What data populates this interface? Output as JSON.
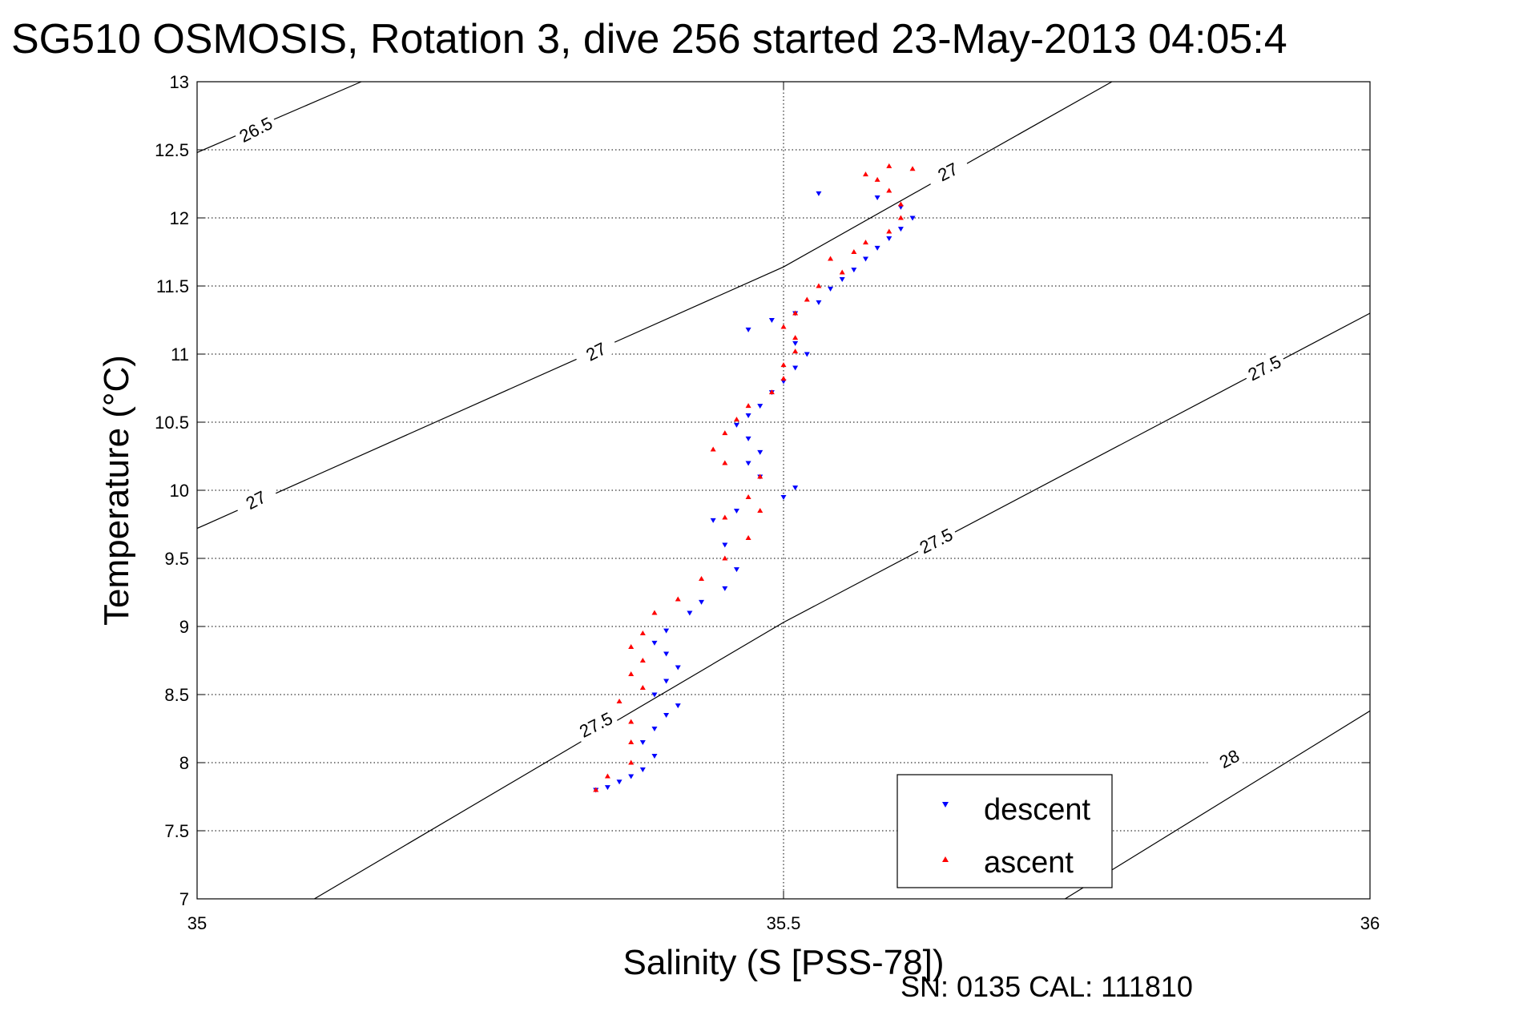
{
  "chart_data": {
    "type": "scatter",
    "title": "SG510 OSMOSIS, Rotation 3, dive 256 started 23-May-2013 04:05:4",
    "xlabel": "Salinity (S [PSS-78])",
    "ylabel": "Temperature (°C)",
    "xlim": [
      35,
      36
    ],
    "ylim": [
      7,
      13
    ],
    "xticks": [
      "35",
      "35.5",
      "36"
    ],
    "yticks": [
      "7",
      "7.5",
      "8",
      "8.5",
      "9",
      "9.5",
      "10",
      "10.5",
      "11",
      "11.5",
      "12",
      "12.5",
      "13"
    ],
    "grid": true,
    "legend_position": "bottom-right",
    "footer": "SN: 0135  CAL: 111810",
    "contours": [
      {
        "label": "26.5",
        "points": [
          [
            35.0,
            12.48
          ],
          [
            35.14,
            13.0
          ]
        ],
        "label_at": [
          35.05,
          12.65
        ]
      },
      {
        "label": "27",
        "points": [
          [
            35.0,
            9.72
          ],
          [
            35.5,
            11.64
          ],
          [
            35.78,
            13.0
          ]
        ],
        "label_at_list": [
          [
            35.05,
            9.93
          ],
          [
            35.34,
            11.02
          ],
          [
            35.64,
            12.34
          ]
        ]
      },
      {
        "label": "27.5",
        "points": [
          [
            35.1,
            7.0
          ],
          [
            35.5,
            9.03
          ],
          [
            36.0,
            11.3
          ]
        ],
        "label_at_list": [
          [
            35.34,
            8.28
          ],
          [
            35.63,
            9.63
          ],
          [
            35.91,
            10.9
          ]
        ]
      },
      {
        "label": "28",
        "points": [
          [
            35.74,
            7.0
          ],
          [
            36.0,
            8.38
          ]
        ],
        "label_at": [
          35.88,
          8.03
        ]
      }
    ],
    "series": [
      {
        "name": "descent",
        "color": "#0000ff",
        "marker": "triangle-down",
        "points": [
          [
            35.34,
            7.8
          ],
          [
            35.35,
            7.82
          ],
          [
            35.36,
            7.86
          ],
          [
            35.37,
            7.9
          ],
          [
            35.38,
            7.95
          ],
          [
            35.39,
            8.05
          ],
          [
            35.38,
            8.15
          ],
          [
            35.39,
            8.25
          ],
          [
            35.4,
            8.35
          ],
          [
            35.41,
            8.42
          ],
          [
            35.39,
            8.5
          ],
          [
            35.4,
            8.6
          ],
          [
            35.41,
            8.7
          ],
          [
            35.4,
            8.8
          ],
          [
            35.39,
            8.88
          ],
          [
            35.4,
            8.97
          ],
          [
            35.42,
            9.1
          ],
          [
            35.43,
            9.18
          ],
          [
            35.45,
            9.28
          ],
          [
            35.46,
            9.42
          ],
          [
            35.45,
            9.6
          ],
          [
            35.44,
            9.78
          ],
          [
            35.46,
            9.85
          ],
          [
            35.5,
            9.95
          ],
          [
            35.51,
            10.02
          ],
          [
            35.48,
            10.1
          ],
          [
            35.47,
            10.2
          ],
          [
            35.48,
            10.28
          ],
          [
            35.47,
            10.38
          ],
          [
            35.46,
            10.48
          ],
          [
            35.47,
            10.55
          ],
          [
            35.48,
            10.62
          ],
          [
            35.49,
            10.72
          ],
          [
            35.5,
            10.8
          ],
          [
            35.51,
            10.9
          ],
          [
            35.52,
            11.0
          ],
          [
            35.51,
            11.08
          ],
          [
            35.47,
            11.18
          ],
          [
            35.49,
            11.25
          ],
          [
            35.51,
            11.3
          ],
          [
            35.53,
            11.38
          ],
          [
            35.54,
            11.48
          ],
          [
            35.55,
            11.55
          ],
          [
            35.56,
            11.62
          ],
          [
            35.57,
            11.7
          ],
          [
            35.58,
            11.78
          ],
          [
            35.59,
            11.85
          ],
          [
            35.6,
            11.92
          ],
          [
            35.61,
            12.0
          ],
          [
            35.6,
            12.08
          ],
          [
            35.58,
            12.15
          ],
          [
            35.53,
            12.18
          ]
        ]
      },
      {
        "name": "ascent",
        "color": "#ff0000",
        "marker": "triangle-up",
        "points": [
          [
            35.34,
            7.8
          ],
          [
            35.35,
            7.9
          ],
          [
            35.37,
            8.0
          ],
          [
            35.37,
            8.15
          ],
          [
            35.37,
            8.3
          ],
          [
            35.36,
            8.45
          ],
          [
            35.38,
            8.55
          ],
          [
            35.37,
            8.65
          ],
          [
            35.38,
            8.75
          ],
          [
            35.37,
            8.85
          ],
          [
            35.38,
            8.95
          ],
          [
            35.39,
            9.1
          ],
          [
            35.41,
            9.2
          ],
          [
            35.43,
            9.35
          ],
          [
            35.45,
            9.5
          ],
          [
            35.47,
            9.65
          ],
          [
            35.45,
            9.8
          ],
          [
            35.48,
            9.85
          ],
          [
            35.47,
            9.95
          ],
          [
            35.48,
            10.1
          ],
          [
            35.45,
            10.2
          ],
          [
            35.44,
            10.3
          ],
          [
            35.45,
            10.42
          ],
          [
            35.46,
            10.52
          ],
          [
            35.47,
            10.62
          ],
          [
            35.49,
            10.72
          ],
          [
            35.5,
            10.82
          ],
          [
            35.5,
            10.92
          ],
          [
            35.51,
            11.02
          ],
          [
            35.51,
            11.12
          ],
          [
            35.5,
            11.2
          ],
          [
            35.51,
            11.3
          ],
          [
            35.52,
            11.4
          ],
          [
            35.53,
            11.5
          ],
          [
            35.55,
            11.6
          ],
          [
            35.54,
            11.7
          ],
          [
            35.56,
            11.75
          ],
          [
            35.57,
            11.82
          ],
          [
            35.59,
            11.9
          ],
          [
            35.6,
            12.0
          ],
          [
            35.6,
            12.1
          ],
          [
            35.59,
            12.2
          ],
          [
            35.58,
            12.28
          ],
          [
            35.57,
            12.32
          ],
          [
            35.59,
            12.38
          ],
          [
            35.61,
            12.36
          ]
        ]
      }
    ]
  }
}
